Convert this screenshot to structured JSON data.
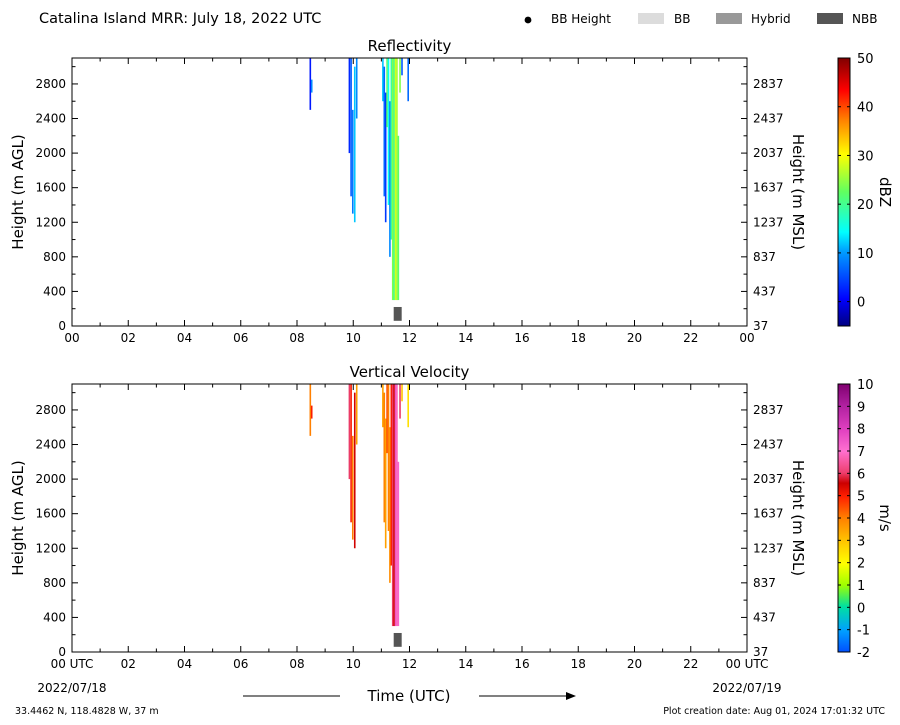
{
  "header": {
    "title": "Catalina Island MRR:  July 18, 2022 UTC",
    "legend": [
      {
        "label": "BB Height",
        "kind": "dot",
        "color": "#000000"
      },
      {
        "label": "BB",
        "kind": "box",
        "color": "#dcdcdc"
      },
      {
        "label": "Hybrid",
        "kind": "box",
        "color": "#999999"
      },
      {
        "label": "NBB",
        "kind": "box",
        "color": "#555555"
      }
    ]
  },
  "footer": {
    "xlabel": "Time (UTC)",
    "start_date": "2022/07/18",
    "end_date": "2022/07/19",
    "location": "33.4462 N, 118.4828 W, 37 m",
    "creation": "Plot creation date: Aug 01, 2024 17:01:32 UTC"
  },
  "chart_data": [
    {
      "type": "heatmap",
      "title": "Reflectivity",
      "ylabel": "Height (m AGL)",
      "y2label": "Height (m MSL)",
      "xlim": [
        0,
        24
      ],
      "ylim": [
        0,
        3100
      ],
      "x_ticks": [
        "00",
        "02",
        "04",
        "06",
        "08",
        "10",
        "12",
        "14",
        "16",
        "18",
        "20",
        "22",
        "00"
      ],
      "y_ticks": [
        0,
        400,
        800,
        1200,
        1600,
        2000,
        2400,
        2800
      ],
      "y2_ticks": [
        "37",
        "437",
        "837",
        "1237",
        "1637",
        "2037",
        "2437",
        "2837"
      ],
      "colorbar": {
        "label": "dBZ",
        "range": [
          -5,
          50
        ],
        "ticks": [
          "0",
          "10",
          "20",
          "30",
          "40",
          "50"
        ],
        "tick_values": [
          0,
          10,
          20,
          30,
          40,
          50
        ]
      },
      "cells": [
        {
          "t": 8.47,
          "y0": 2500,
          "y1": 3100,
          "v": 2
        },
        {
          "t": 8.52,
          "y0": 2700,
          "y1": 2850,
          "v": 9
        },
        {
          "t": 9.86,
          "y0": 2000,
          "y1": 3100,
          "v": 3
        },
        {
          "t": 9.92,
          "y0": 1500,
          "y1": 3100,
          "v": 6
        },
        {
          "t": 9.98,
          "y0": 1300,
          "y1": 2500,
          "v": 8
        },
        {
          "t": 10.05,
          "y0": 1200,
          "y1": 3000,
          "v": 12
        },
        {
          "t": 10.12,
          "y0": 2400,
          "y1": 3100,
          "v": 9
        },
        {
          "t": 11.05,
          "y0": 2600,
          "y1": 3100,
          "v": 12
        },
        {
          "t": 11.1,
          "y0": 1500,
          "y1": 3000,
          "v": 7
        },
        {
          "t": 11.15,
          "y0": 1200,
          "y1": 2700,
          "v": 4
        },
        {
          "t": 11.2,
          "y0": 2300,
          "y1": 3100,
          "v": 22
        },
        {
          "t": 11.25,
          "y0": 1400,
          "y1": 3100,
          "v": 15
        },
        {
          "t": 11.3,
          "y0": 800,
          "y1": 2600,
          "v": 9
        },
        {
          "t": 11.35,
          "y0": 1000,
          "y1": 3100,
          "v": 19
        },
        {
          "t": 11.4,
          "y0": 300,
          "y1": 3100,
          "v": 24
        },
        {
          "t": 11.45,
          "y0": 300,
          "y1": 3100,
          "v": 20
        },
        {
          "t": 11.5,
          "y0": 300,
          "y1": 3100,
          "v": 28
        },
        {
          "t": 11.55,
          "y0": 300,
          "y1": 3100,
          "v": 26
        },
        {
          "t": 11.6,
          "y0": 300,
          "y1": 2200,
          "v": 22
        },
        {
          "t": 11.66,
          "y0": 2700,
          "y1": 3100,
          "v": 24
        },
        {
          "t": 11.73,
          "y0": 2900,
          "y1": 3100,
          "v": 6
        },
        {
          "t": 11.95,
          "y0": 2600,
          "y1": 3100,
          "v": 7
        }
      ],
      "bb_markers": [
        {
          "t": 11.58,
          "y0": 60,
          "y1": 220,
          "kind": "NBB"
        }
      ]
    },
    {
      "type": "heatmap",
      "title": "Vertical Velocity",
      "ylabel": "Height (m AGL)",
      "y2label": "Height (m MSL)",
      "xlim": [
        0,
        24
      ],
      "ylim": [
        0,
        3100
      ],
      "x_ticks": [
        "00 UTC",
        "02",
        "04",
        "06",
        "08",
        "10",
        "12",
        "14",
        "16",
        "18",
        "20",
        "22",
        "00 UTC"
      ],
      "y_ticks": [
        0,
        400,
        800,
        1200,
        1600,
        2000,
        2400,
        2800
      ],
      "y2_ticks": [
        "37",
        "437",
        "837",
        "1237",
        "1637",
        "2037",
        "2437",
        "2837"
      ],
      "colorbar": {
        "label": "m/s",
        "range": [
          -2,
          10
        ],
        "ticks": [
          "-2",
          "-1",
          "0",
          "1",
          "2",
          "3",
          "4",
          "5",
          "6",
          "7",
          "8",
          "9",
          "10"
        ],
        "tick_values": [
          -2,
          -1,
          0,
          1,
          2,
          3,
          4,
          5,
          6,
          7,
          8,
          9,
          10
        ]
      },
      "cells": [
        {
          "t": 8.47,
          "y0": 2500,
          "y1": 3100,
          "v": 4
        },
        {
          "t": 8.52,
          "y0": 2700,
          "y1": 2850,
          "v": 5
        },
        {
          "t": 9.86,
          "y0": 2000,
          "y1": 3100,
          "v": 6
        },
        {
          "t": 9.92,
          "y0": 1500,
          "y1": 3100,
          "v": 5
        },
        {
          "t": 9.98,
          "y0": 1300,
          "y1": 2500,
          "v": 4
        },
        {
          "t": 10.05,
          "y0": 1200,
          "y1": 3000,
          "v": 5.5
        },
        {
          "t": 10.12,
          "y0": 2400,
          "y1": 3100,
          "v": 3.5
        },
        {
          "t": 11.05,
          "y0": 2600,
          "y1": 3100,
          "v": 3.5
        },
        {
          "t": 11.1,
          "y0": 1500,
          "y1": 3000,
          "v": 4
        },
        {
          "t": 11.15,
          "y0": 1200,
          "y1": 2700,
          "v": 3.5
        },
        {
          "t": 11.2,
          "y0": 2300,
          "y1": 3100,
          "v": 4.5
        },
        {
          "t": 11.25,
          "y0": 1400,
          "y1": 3100,
          "v": 4
        },
        {
          "t": 11.3,
          "y0": 800,
          "y1": 2600,
          "v": 3.8
        },
        {
          "t": 11.35,
          "y0": 1000,
          "y1": 3100,
          "v": 5
        },
        {
          "t": 11.4,
          "y0": 300,
          "y1": 3100,
          "v": 6
        },
        {
          "t": 11.45,
          "y0": 300,
          "y1": 3100,
          "v": 5.5
        },
        {
          "t": 11.5,
          "y0": 300,
          "y1": 3100,
          "v": 7.5
        },
        {
          "t": 11.55,
          "y0": 300,
          "y1": 3100,
          "v": 6.8
        },
        {
          "t": 11.6,
          "y0": 300,
          "y1": 2200,
          "v": 7.2
        },
        {
          "t": 11.66,
          "y0": 2700,
          "y1": 3100,
          "v": 6
        },
        {
          "t": 11.73,
          "y0": 2900,
          "y1": 3100,
          "v": 3
        },
        {
          "t": 11.95,
          "y0": 2600,
          "y1": 3100,
          "v": 2.5
        }
      ],
      "bb_markers": [
        {
          "t": 11.58,
          "y0": 60,
          "y1": 220,
          "kind": "NBB"
        }
      ]
    }
  ]
}
